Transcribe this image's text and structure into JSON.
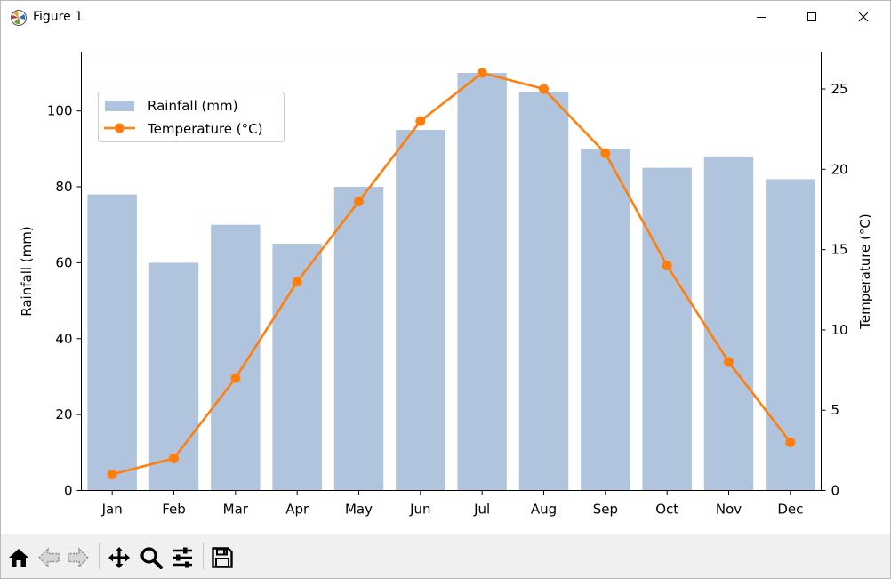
{
  "window": {
    "title": "Figure 1",
    "icons": {
      "app": "matplotlib-icon",
      "minimize": "minimize-icon",
      "maximize": "maximize-icon",
      "close": "close-icon"
    }
  },
  "toolbar": {
    "tools": [
      "home-icon",
      "back-icon",
      "forward-icon",
      "pan-icon",
      "zoom-icon",
      "configure-subplots-icon",
      "save-icon"
    ]
  },
  "chart_data": {
    "type": "bar",
    "categories": [
      "Jan",
      "Feb",
      "Mar",
      "Apr",
      "May",
      "Jun",
      "Jul",
      "Aug",
      "Sep",
      "Oct",
      "Nov",
      "Dec"
    ],
    "series": [
      {
        "name": "Rainfall (mm)",
        "type": "bar",
        "axis": "left",
        "color": "#b0c4de",
        "values": [
          78,
          60,
          70,
          65,
          80,
          95,
          110,
          105,
          90,
          85,
          88,
          82
        ]
      },
      {
        "name": "Temperature (°C)",
        "type": "line",
        "axis": "right",
        "color": "#ff7f0e",
        "marker": "circle",
        "values": [
          1,
          2,
          7,
          13,
          18,
          23,
          26,
          25,
          21,
          14,
          8,
          3
        ]
      }
    ],
    "ylabel": "Rainfall (mm)",
    "y2label": "Temperature (°C)",
    "ylim": [
      0,
      115.5
    ],
    "y2lim": [
      0,
      27.3
    ],
    "yticks": [
      0,
      20,
      40,
      60,
      80,
      100
    ],
    "y2ticks": [
      0,
      5,
      10,
      15,
      20,
      25
    ],
    "grid": false,
    "legend_placement": "upper-left"
  }
}
